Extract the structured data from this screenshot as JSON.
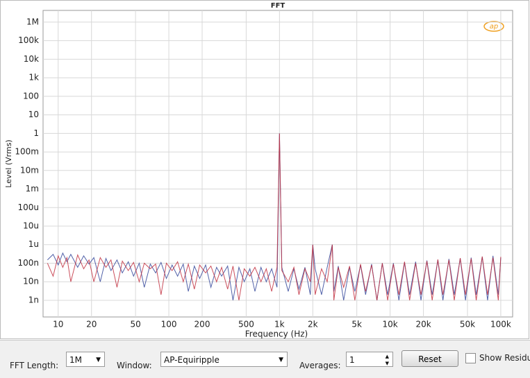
{
  "chart_data": {
    "type": "line",
    "title": "FFT",
    "xlabel": "Frequency (Hz)",
    "ylabel": "Level (Vrms)",
    "xscale": "log",
    "yscale": "log",
    "grid": true,
    "xlim": [
      7.3,
      128000
    ],
    "ylim": [
      1.26e-10,
      4300000
    ],
    "xticks": [
      10,
      20,
      50,
      100,
      200,
      500,
      {
        "value": 1000,
        "label": "1k"
      },
      {
        "value": 2000,
        "label": "2k"
      },
      {
        "value": 5000,
        "label": "5k"
      },
      {
        "value": 10000,
        "label": "10k"
      },
      {
        "value": 20000,
        "label": "20k"
      },
      {
        "value": 50000,
        "label": "50k"
      },
      {
        "value": 100000,
        "label": "100k"
      }
    ],
    "yticks": [
      {
        "value": 1000000,
        "label": "1M"
      },
      {
        "value": 100000,
        "label": "100k"
      },
      {
        "value": 10000,
        "label": "10k"
      },
      {
        "value": 1000,
        "label": "1k"
      },
      100,
      10,
      1,
      {
        "value": 0.1,
        "label": "100m"
      },
      {
        "value": 0.01,
        "label": "10m"
      },
      {
        "value": 0.001,
        "label": "1m"
      },
      {
        "value": 0.0001,
        "label": "100u"
      },
      {
        "value": 1e-05,
        "label": "10u"
      },
      {
        "value": 1e-06,
        "label": "1u"
      },
      {
        "value": 1e-07,
        "label": "100n"
      },
      {
        "value": 1e-08,
        "label": "10n"
      },
      {
        "value": 1e-09,
        "label": "1n"
      }
    ],
    "x": [
      8,
      9,
      10,
      11,
      12,
      13,
      15,
      17,
      19,
      21,
      24,
      27,
      30,
      34,
      38,
      43,
      48,
      54,
      60,
      68,
      76,
      85,
      95,
      107,
      120,
      135,
      150,
      170,
      190,
      215,
      240,
      270,
      300,
      340,
      380,
      430,
      480,
      540,
      600,
      680,
      760,
      850,
      950,
      1000,
      1050,
      1200,
      1350,
      1500,
      1700,
      1900,
      2000,
      2100,
      2400,
      2700,
      3000,
      3100,
      3400,
      3800,
      4300,
      4800,
      5400,
      6000,
      6800,
      7600,
      8500,
      9500,
      10700,
      12000,
      13500,
      15000,
      17000,
      19000,
      21500,
      24000,
      27000,
      30000,
      34000,
      38000,
      43000,
      48000,
      54000,
      60000,
      68000,
      76000,
      85000,
      95000,
      100000
    ],
    "series": [
      {
        "color": "#34479a",
        "values": [
          1.5e-07,
          3e-07,
          8e-08,
          3.5e-07,
          1.2e-07,
          3e-07,
          6e-08,
          2.5e-07,
          9e-08,
          2e-07,
          1e-08,
          1.8e-07,
          4e-08,
          1.5e-07,
          3e-08,
          1.2e-07,
          2e-08,
          1e-07,
          5e-09,
          9e-08,
          3e-08,
          1.1e-07,
          1.5e-08,
          8e-08,
          2e-08,
          9e-08,
          3e-09,
          7e-08,
          1.5e-08,
          8e-08,
          5e-09,
          6e-08,
          2e-08,
          7e-08,
          1e-09,
          6e-08,
          1e-08,
          5e-08,
          3e-09,
          6e-08,
          1e-08,
          5e-08,
          5e-09,
          1,
          6e-08,
          3e-09,
          5e-08,
          4e-09,
          6e-08,
          2e-09,
          1e-06,
          5e-08,
          2e-09,
          6e-08,
          1e-06,
          3e-09,
          7e-08,
          1e-09,
          6e-08,
          3e-09,
          8e-08,
          2e-09,
          9e-08,
          1e-09,
          1e-07,
          2e-09,
          1e-07,
          1e-09,
          1.1e-07,
          2e-09,
          1.2e-07,
          1e-09,
          1.4e-07,
          2e-09,
          1.5e-07,
          1e-09,
          1.7e-07,
          2e-09,
          1.8e-07,
          1e-09,
          2e-07,
          2e-09,
          2.2e-07,
          1e-09,
          2.5e-07,
          2e-09,
          2e-07
        ]
      },
      {
        "color": "#c2303f",
        "values": [
          1e-07,
          2e-08,
          2.5e-07,
          6e-08,
          2e-07,
          1e-08,
          2.8e-07,
          5e-08,
          1.5e-07,
          1e-08,
          2e-07,
          6e-08,
          1.5e-07,
          5e-09,
          1.3e-07,
          4e-08,
          1.1e-07,
          1e-08,
          1e-07,
          5e-08,
          9e-08,
          2e-09,
          1e-07,
          4e-08,
          1.2e-07,
          1e-08,
          9e-08,
          4e-09,
          8e-08,
          3e-08,
          7e-08,
          1e-08,
          6e-08,
          4e-09,
          7e-08,
          1e-09,
          5e-08,
          2e-08,
          6e-08,
          1e-08,
          5e-08,
          3e-09,
          6e-08,
          1,
          4e-08,
          1e-08,
          6e-08,
          2e-09,
          5e-08,
          1e-08,
          1e-06,
          2e-09,
          5e-08,
          1e-08,
          1e-06,
          1e-09,
          6e-08,
          5e-09,
          7e-08,
          1e-09,
          9e-08,
          3e-09,
          8e-08,
          1e-09,
          1e-07,
          1e-09,
          9e-08,
          2e-09,
          1.2e-07,
          1e-09,
          1e-07,
          2e-09,
          1.3e-07,
          1e-09,
          1.6e-07,
          2e-09,
          1.5e-07,
          1e-09,
          1.9e-07,
          2e-09,
          1.8e-07,
          1e-09,
          2.3e-07,
          2e-09,
          2e-07,
          1e-09,
          2.2e-07
        ]
      }
    ]
  },
  "controls": {
    "fft_length_label": "FFT Length:",
    "fft_length": "1M",
    "window_label": "Window:",
    "window": "AP-Equiripple",
    "averages_label": "Averages:",
    "averages": "1",
    "reset": "Reset",
    "show_residual": "Show Residu"
  }
}
